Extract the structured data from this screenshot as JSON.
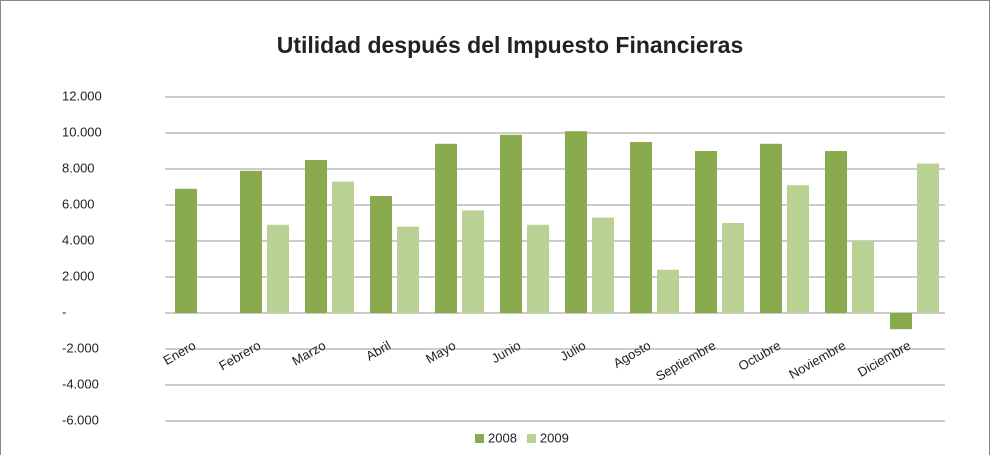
{
  "chart_data": {
    "type": "bar",
    "title": "Utilidad después del Impuesto  Financieras",
    "categories": [
      "Enero",
      "Febrero",
      "Marzo",
      "Abril",
      "Mayo",
      "Junio",
      "Julio",
      "Agosto",
      "Septiembre",
      "Octubre",
      "Noviembre",
      "Diciembre"
    ],
    "series": [
      {
        "name": "2008",
        "color": "#8aaa4e",
        "values": [
          6900,
          7900,
          8500,
          6500,
          9400,
          9900,
          10100,
          9500,
          9000,
          9400,
          9000,
          -900
        ]
      },
      {
        "name": "2009",
        "color": "#b9d192",
        "values": [
          null,
          4900,
          7300,
          4800,
          5700,
          4900,
          5300,
          2400,
          5000,
          7100,
          4000,
          8300
        ]
      }
    ],
    "ylim": [
      -6000,
      12000
    ],
    "yticks": [
      {
        "value": -6000,
        "label": "-6.000"
      },
      {
        "value": -4000,
        "label": "-4.000"
      },
      {
        "value": -2000,
        "label": "-2.000"
      },
      {
        "value": 0,
        "label": "-"
      },
      {
        "value": 2000,
        "label": "2.000"
      },
      {
        "value": 4000,
        "label": "4.000"
      },
      {
        "value": 6000,
        "label": "6.000"
      },
      {
        "value": 8000,
        "label": "8.000"
      },
      {
        "value": 10000,
        "label": "10.000"
      },
      {
        "value": 12000,
        "label": "12.000"
      }
    ],
    "grid": true,
    "legend": "bottom"
  }
}
